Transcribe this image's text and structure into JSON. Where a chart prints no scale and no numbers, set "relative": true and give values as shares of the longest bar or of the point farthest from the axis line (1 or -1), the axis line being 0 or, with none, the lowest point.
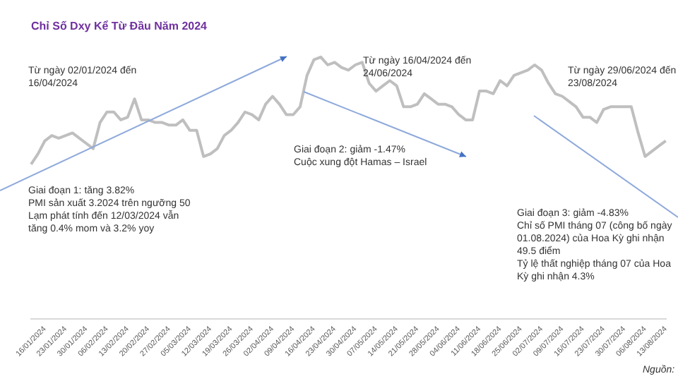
{
  "chart_data": {
    "type": "line",
    "title": "Chỉ Số Dxy Kể Từ Đầu Năm 2024",
    "relative": true,
    "categories": [
      null,
      null,
      "16/01/2024",
      null,
      null,
      "23/01/2024",
      null,
      null,
      "30/01/2024",
      null,
      null,
      "06/02/2024",
      null,
      null,
      "13/02/2024",
      null,
      null,
      "20/02/2024",
      null,
      null,
      "27/02/2024",
      null,
      null,
      "05/03/2024",
      null,
      null,
      "12/03/2024",
      null,
      null,
      "19/03/2024",
      null,
      null,
      "26/03/2024",
      null,
      null,
      "02/04/2024",
      null,
      null,
      "09/04/2024",
      null,
      null,
      "16/04/2024",
      null,
      null,
      "23/04/2024",
      null,
      null,
      "30/04/2024",
      null,
      null,
      "07/05/2024",
      null,
      null,
      "14/05/2024",
      null,
      null,
      "21/05/2024",
      null,
      null,
      "28/05/2024",
      null,
      null,
      "04/06/2024",
      null,
      null,
      "11/06/2024",
      null,
      null,
      "18/06/2024",
      null,
      null,
      "25/06/2024",
      null,
      null,
      "02/07/2024",
      null,
      null,
      "09/07/2024",
      null,
      null,
      "16/07/2024",
      null,
      null,
      "23/07/2024",
      null,
      null,
      "30/07/2024",
      null,
      null,
      "06/08/2024",
      null,
      null,
      "13/08/2024"
    ],
    "series": [
      {
        "color": "#bfbfbf",
        "values": [
          0.59,
          0.63,
          0.68,
          0.7,
          0.69,
          0.7,
          0.71,
          0.69,
          0.67,
          0.65,
          0.75,
          0.79,
          0.79,
          0.76,
          0.77,
          0.84,
          0.76,
          0.76,
          0.75,
          0.75,
          0.74,
          0.74,
          0.76,
          0.72,
          0.72,
          0.62,
          0.63,
          0.65,
          0.7,
          0.72,
          0.75,
          0.79,
          0.78,
          0.76,
          0.82,
          0.85,
          0.82,
          0.78,
          0.78,
          0.81,
          0.93,
          0.99,
          1,
          0.97,
          0.98,
          0.96,
          0.95,
          0.97,
          0.98,
          0.9,
          0.87,
          0.89,
          0.91,
          0.89,
          0.81,
          0.81,
          0.82,
          0.86,
          0.84,
          0.82,
          0.82,
          0.81,
          0.78,
          0.76,
          0.76,
          0.87,
          0.87,
          0.86,
          0.91,
          0.89,
          0.93,
          0.94,
          0.95,
          0.97,
          0.95,
          0.9,
          0.86,
          0.85,
          0.83,
          0.81,
          0.77,
          0.77,
          0.75,
          0.8,
          0.81,
          0.81,
          0.81,
          0.81,
          0.71,
          0.62,
          0.64,
          0.66,
          0.68
        ]
      }
    ],
    "marker": "none",
    "legend": false,
    "grid": false,
    "annotations": [
      "Từ ngày 02/01/2024 đến\n16/04/2024",
      "Giai đoạn 1: tăng 3.82%\nPMI sản xuất 3.2024 trên ngưỡng 50\nLạm phát tính đến 12/03/2024 vẫn\ntăng 0.4% mom và 3.2% yoy",
      "Từ ngày 16/04/2024 đến\n24/06/2024",
      "Giai đoạn 2: giảm -1.47%\nCuộc xung đột Hamas – Israel",
      "Từ ngày 29/06/2024 đến\n23/08/2024",
      "Giai đoạn 3: giảm -4.83%\nChỉ số PMI tháng 07 (công bố ngày\n01.08.2024) của Hoa Kỳ ghi nhận\n49.5 điểm\nTỷ lệ thất nghiệp tháng 07 của Hoa\nKỳ ghi nhận 4.3%",
      "Nguồn:"
    ]
  }
}
